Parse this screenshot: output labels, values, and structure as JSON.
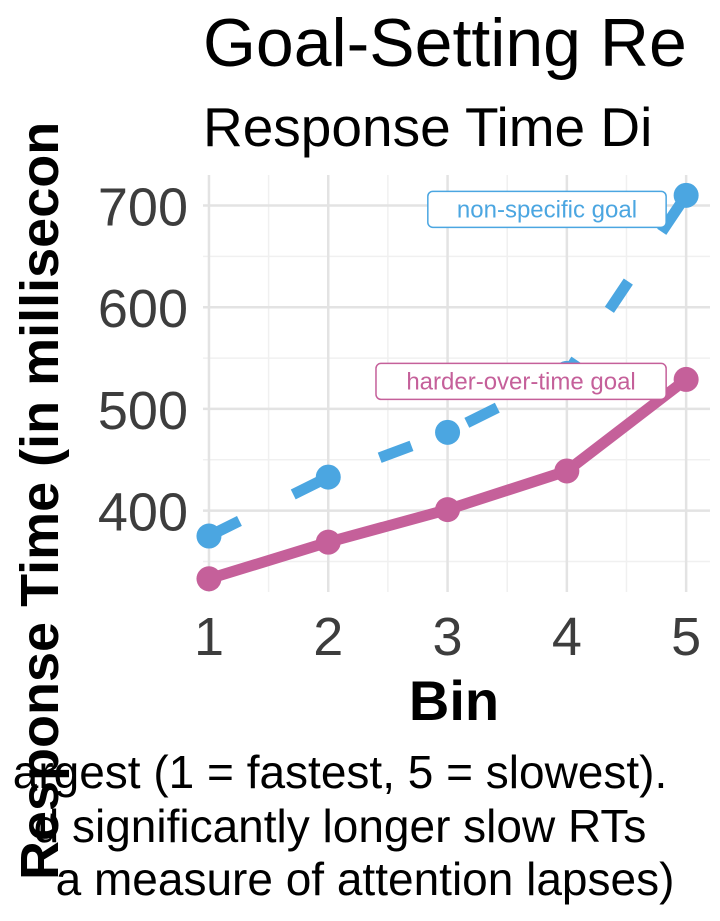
{
  "chart_data": {
    "type": "line",
    "title": "Goal-Setting Re",
    "subtitle": "Response Time Di",
    "xlabel": "Bin",
    "ylabel": "Response Time (in millisecon",
    "caption_lines": [
      "argest (1 = fastest, 5 = slowest).",
      "d significantly longer slow RTs",
      "a measure of attention lapses)"
    ],
    "categories": [
      1,
      2,
      3,
      4,
      5
    ],
    "x_ticks": [
      "1",
      "2",
      "3",
      "4",
      "5"
    ],
    "y_ticks": [
      400,
      500,
      600,
      700
    ],
    "xlim": [
      0.95,
      5.2
    ],
    "ylim": [
      320,
      730
    ],
    "grid": true,
    "series": [
      {
        "name": "non-specific goal",
        "values": [
          375,
          433,
          477,
          535,
          710
        ],
        "color": "#4BA6E1",
        "line_style": "dashed"
      },
      {
        "name": "harder-over-time goal",
        "values": [
          333,
          369,
          401,
          439,
          529
        ],
        "color": "#C5609A",
        "line_style": "solid"
      }
    ]
  }
}
